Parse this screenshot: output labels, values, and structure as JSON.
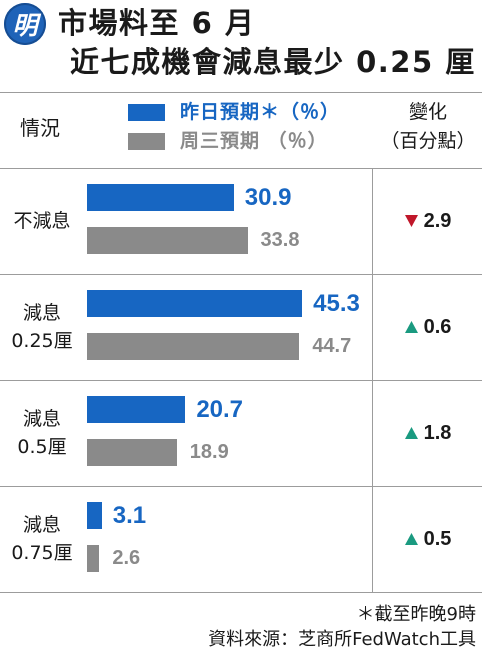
{
  "logo": {
    "text": "明",
    "color": "#1f63b8"
  },
  "title": {
    "line1": "市場料至 6 月",
    "line2": "近七成機會減息最少 0.25 厘"
  },
  "header": {
    "category": "情況",
    "change_line1": "變化",
    "change_line2": "（百分點）"
  },
  "chart_data": {
    "type": "bar",
    "orientation": "horizontal",
    "categories": [
      "不減息",
      "減息\n0.25厘",
      "減息\n0.5厘",
      "減息\n0.75厘"
    ],
    "series": [
      {
        "name": "昨日預期＊（％）",
        "values": [
          30.9,
          45.3,
          20.7,
          3.1
        ],
        "color": "#1766c2"
      },
      {
        "name": "周三預期 （％）",
        "values": [
          33.8,
          44.7,
          18.9,
          2.6
        ],
        "color": "#8a8a8a"
      }
    ],
    "change": [
      {
        "direction": "down",
        "value": 2.9,
        "color": "#c0172a"
      },
      {
        "direction": "up",
        "value": 0.6,
        "color": "#1a9a80"
      },
      {
        "direction": "up",
        "value": 1.8,
        "color": "#1a9a80"
      },
      {
        "direction": "up",
        "value": 0.5,
        "color": "#1a9a80"
      }
    ],
    "xlim": [
      0,
      60
    ],
    "grid": false,
    "legend_position": "top"
  },
  "footnote": "＊截至昨晚9時",
  "source": "資料來源：芝商所FedWatch工具"
}
